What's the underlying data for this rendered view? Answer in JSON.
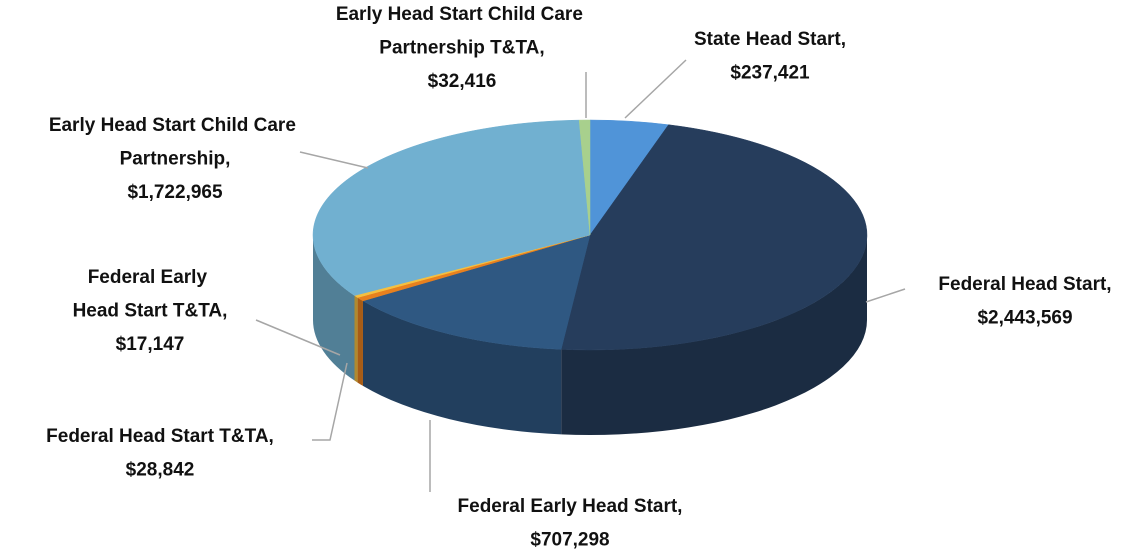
{
  "chart_data": {
    "type": "pie",
    "categories": [
      "State Head Start,",
      "Federal Head Start,",
      "Federal Early Head Start,",
      "Federal Head Start T&TA,",
      "Federal Early Head Start T&TA,",
      "Early Head Start Child Care Partnership,",
      "Early Head Start Child Care Partnership T&TA,"
    ],
    "values": [
      237421,
      2443569,
      707298,
      28842,
      17147,
      1722965,
      32416
    ],
    "value_labels": [
      "$237,421",
      "$2,443,569",
      "$707,298",
      "$28,842",
      "$17,147",
      "$1,722,965",
      "$32,416"
    ],
    "colors": [
      "#5094d8",
      "#263d5c",
      "#2f5882",
      "#e8801e",
      "#f5c040",
      "#71b0d0",
      "#a8d08d"
    ]
  }
}
